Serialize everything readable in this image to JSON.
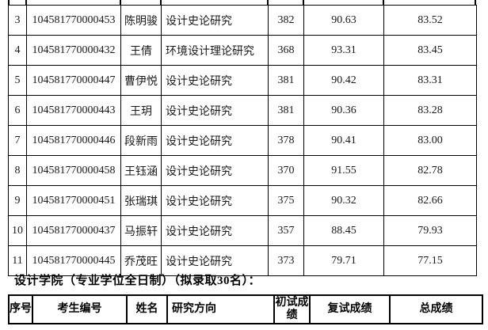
{
  "page": {
    "background_color": "#ffffff",
    "text_color": "#1a1a1a",
    "border_color": "#000000"
  },
  "results_table": {
    "rows": [
      {
        "no": "3",
        "candidate_id": "104581770000453",
        "name": "陈明骏",
        "direction": "设计史论研究",
        "initial_score": "382",
        "retest_score": "90.63",
        "total_score": "83.52"
      },
      {
        "no": "4",
        "candidate_id": "104581770000432",
        "name": "王倩",
        "direction": "环境设计理论研究",
        "initial_score": "368",
        "retest_score": "93.31",
        "total_score": "83.45"
      },
      {
        "no": "5",
        "candidate_id": "104581770000447",
        "name": "曹伊悦",
        "direction": "设计史论研究",
        "initial_score": "381",
        "retest_score": "90.42",
        "total_score": "83.31"
      },
      {
        "no": "6",
        "candidate_id": "104581770000443",
        "name": "王玥",
        "direction": "设计史论研究",
        "initial_score": "381",
        "retest_score": "90.36",
        "total_score": "83.28"
      },
      {
        "no": "7",
        "candidate_id": "104581770000446",
        "name": "段新雨",
        "direction": "设计史论研究",
        "initial_score": "378",
        "retest_score": "90.41",
        "total_score": "83.00"
      },
      {
        "no": "8",
        "candidate_id": "104581770000458",
        "name": "王钰涵",
        "direction": "设计史论研究",
        "initial_score": "370",
        "retest_score": "91.55",
        "total_score": "82.78"
      },
      {
        "no": "9",
        "candidate_id": "104581770000451",
        "name": "张瑞琪",
        "direction": "设计史论研究",
        "initial_score": "375",
        "retest_score": "90.32",
        "total_score": "82.66"
      },
      {
        "no": "10",
        "candidate_id": "104581770000437",
        "name": "马振轩",
        "direction": "设计史论研究",
        "initial_score": "357",
        "retest_score": "88.45",
        "total_score": "79.93"
      },
      {
        "no": "11",
        "candidate_id": "104581770000445",
        "name": "乔茂旺",
        "direction": "设计史论研究",
        "initial_score": "373",
        "retest_score": "79.71",
        "total_score": "77.15"
      }
    ]
  },
  "section_heading": "设计学院（专业学位全日制）（拟录取30名）：",
  "next_table": {
    "headers": {
      "no": "序号",
      "candidate_id": "考生编号",
      "name": "姓名",
      "direction": "研究方向",
      "initial": "初试成绩",
      "retest": "复试成绩",
      "total": "总成绩"
    }
  }
}
